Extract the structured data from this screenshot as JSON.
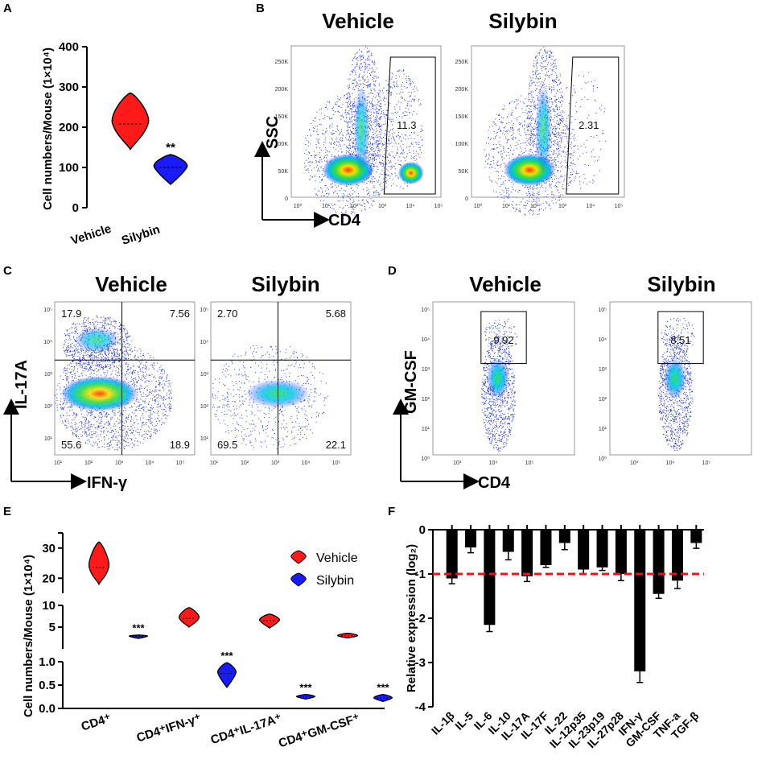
{
  "panels": {
    "A": {
      "label": "A"
    },
    "B": {
      "label": "B",
      "titles": [
        "Vehicle",
        "Silybin"
      ],
      "xaxis": "CD4",
      "yaxis": "SSC",
      "gate_values": [
        "11.3",
        "2.31"
      ],
      "yticks": [
        "250K",
        "200K",
        "150K",
        "100K",
        "50K",
        "0"
      ],
      "xticks": [
        "10⁰",
        "10¹",
        "10²",
        "10³",
        "10⁴",
        "10⁵"
      ]
    },
    "C": {
      "label": "C",
      "titles": [
        "Vehicle",
        "Silybin"
      ],
      "xaxis": "IFN-γ",
      "yaxis": "IL-17A",
      "quadrants": [
        {
          "ul": "17.9",
          "ur": "7.56",
          "ll": "55.6",
          "lr": "18.9"
        },
        {
          "ul": "2.70",
          "ur": "5.68",
          "ll": "69.5",
          "lr": "22.1"
        }
      ],
      "ticks": [
        "10⁵",
        "10⁴",
        "10³",
        "10²",
        "10¹"
      ],
      "xticks": [
        "10¹",
        "10²",
        "10³",
        "10⁴",
        "10⁵"
      ]
    },
    "D": {
      "label": "D",
      "titles": [
        "Vehicle",
        "Silybin"
      ],
      "xaxis": "CD4",
      "yaxis": "GM-CSF",
      "gate_values": [
        "9.92",
        "8.51"
      ],
      "yticks": [
        "10⁵",
        "10⁴",
        "10³",
        "10²",
        "10¹",
        "10⁰"
      ],
      "xticks": [
        "10³",
        "10⁴",
        "10⁵"
      ]
    },
    "E": {
      "label": "E"
    },
    "F": {
      "label": "F"
    }
  },
  "chart_data": [
    {
      "panel": "A",
      "type": "violin",
      "categories": [
        "Vehicle",
        "Silybin"
      ],
      "medians": [
        208,
        100
      ],
      "ranges": [
        [
          145,
          285
        ],
        [
          58,
          132
        ]
      ],
      "colors": [
        "#ff1a1a",
        "#1a1aff"
      ],
      "significance": [
        "",
        "**"
      ],
      "ylabel": "Cell numbers/Mouse (1×10⁴)",
      "ylim": [
        0,
        400
      ],
      "yticks": [
        0,
        100,
        200,
        300,
        400
      ]
    },
    {
      "panel": "E",
      "type": "violin",
      "categories": [
        "CD4⁺",
        "CD4⁺IFN-γ⁺",
        "CD4⁺IL-17A⁺",
        "CD4⁺GM-CSF⁺"
      ],
      "series": [
        {
          "name": "Vehicle",
          "color": "#ff1a1a",
          "medians": [
            23.5,
            7,
            6.5,
            3
          ],
          "ranges": [
            [
              18,
              32
            ],
            [
              5,
              9.5
            ],
            [
              4.8,
              8
            ],
            [
              2.5,
              3.6
            ]
          ]
        },
        {
          "name": "Silybin",
          "color": "#1a1aff",
          "medians": [
            2.9,
            0.75,
            0.25,
            0.22
          ],
          "ranges": [
            [
              2.4,
              3.2
            ],
            [
              0.45,
              0.98
            ],
            [
              0.2,
              0.3
            ],
            [
              0.15,
              0.3
            ]
          ]
        }
      ],
      "significance": [
        "***",
        "***",
        "***",
        "***"
      ],
      "ylabel": "Cell numbers/Mouse (1×10⁴)",
      "yaxis_segments": [
        {
          "range": [
            0,
            1.0
          ],
          "ticks": [
            "0.0",
            "0.5",
            "1.0"
          ]
        },
        {
          "range": [
            0,
            10
          ],
          "ticks": [
            "5",
            "10"
          ]
        },
        {
          "range": [
            18,
            35
          ],
          "ticks": [
            "20",
            "30"
          ]
        }
      ],
      "legend": [
        "Vehicle",
        "Silybin"
      ]
    },
    {
      "panel": "F",
      "type": "bar",
      "categories": [
        "IL-1β",
        "IL-5",
        "IL-6",
        "IL-10",
        "IL-17A",
        "IL-17F",
        "IL-22",
        "IL-12p35",
        "IL-23p19",
        "IL-27p28",
        "IFN-γ",
        "GM-CSF",
        "TNF-a",
        "TGF-β"
      ],
      "values": [
        -1.1,
        -0.4,
        -2.15,
        -0.5,
        -1.05,
        -0.8,
        -0.3,
        -0.9,
        -0.85,
        -1.0,
        -3.2,
        -1.45,
        -1.15,
        -0.3
      ],
      "errors": [
        0.12,
        0.12,
        0.15,
        0.18,
        0.12,
        0.05,
        0.15,
        0.1,
        0.07,
        0.15,
        0.25,
        0.1,
        0.18,
        0.12
      ],
      "ylabel": "Relative expression (log₂)",
      "ylim": [
        -4,
        0
      ],
      "yticks": [
        "0",
        "-1",
        "-2",
        "-3",
        "-4"
      ],
      "reference_line": -1,
      "reference_color": "#e8141a",
      "bar_color": "#000000"
    }
  ]
}
